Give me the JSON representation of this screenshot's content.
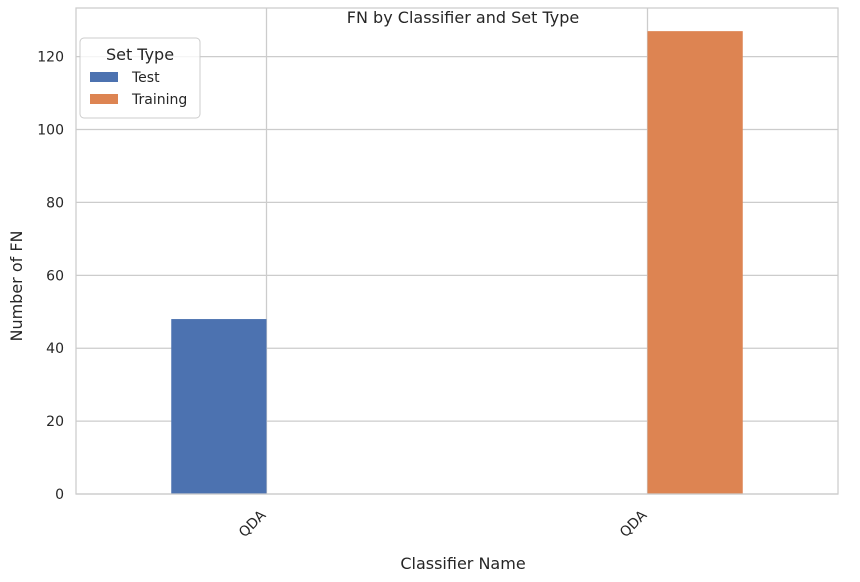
{
  "chart_data": {
    "type": "bar",
    "title": "FN by Classifier and Set Type",
    "xlabel": "Classifier Name",
    "ylabel": "Number of FN",
    "categories": [
      "QDA",
      "QDA"
    ],
    "series": [
      {
        "name": "Test",
        "values": [
          48,
          0
        ],
        "color": "#4c72b0"
      },
      {
        "name": "Training",
        "values": [
          0,
          127
        ],
        "color": "#dd8452"
      }
    ],
    "ylim": [
      0,
      133.35
    ],
    "yticks": [
      0,
      20,
      40,
      60,
      80,
      100,
      120
    ],
    "grid": true,
    "legend": {
      "title": "Set Type",
      "placement": "top-left"
    }
  }
}
